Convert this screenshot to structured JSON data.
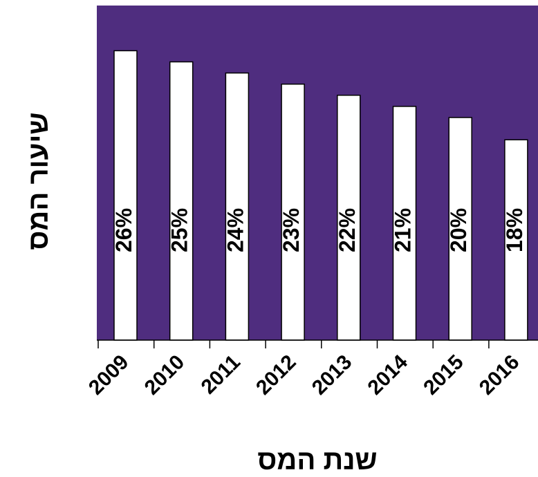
{
  "chart_data": {
    "type": "bar",
    "title": "",
    "xlabel": "שנת המס",
    "ylabel": "שיעור המס",
    "categories": [
      "2009",
      "2010",
      "2011",
      "2012",
      "2013",
      "2014",
      "2015",
      "2016"
    ],
    "values": [
      26,
      25,
      24,
      23,
      22,
      21,
      20,
      18
    ],
    "value_labels": [
      "26%",
      "25%",
      "24%",
      "23%",
      "22%",
      "21%",
      "20%",
      "18%"
    ],
    "unit": "%",
    "ylim": [
      0,
      30
    ],
    "grid": false,
    "legend": "none",
    "colors": {
      "plot_background": "#4f2d7f",
      "bar_fill": "#ffffff",
      "bar_stroke": "#000000"
    }
  }
}
